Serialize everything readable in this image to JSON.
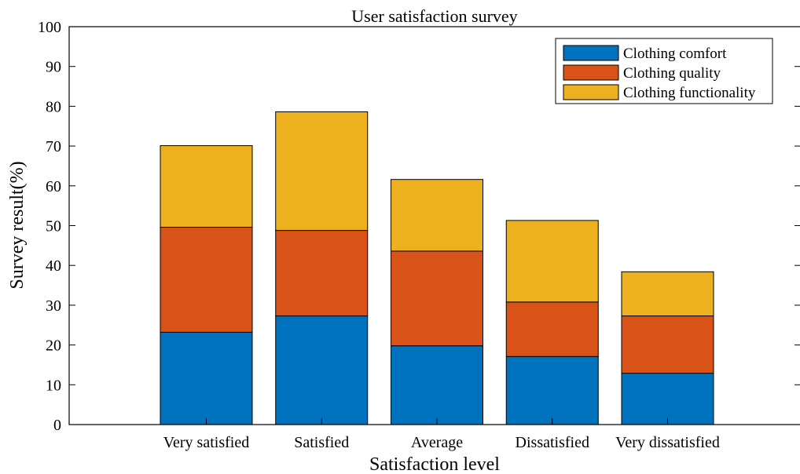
{
  "chart_data": {
    "type": "bar",
    "stacked": true,
    "title": "User satisfaction survey",
    "xlabel": "Satisfaction level",
    "ylabel": "Survey result(%)",
    "categories": [
      "Very satisfied",
      "Satisfied",
      "Average",
      "Dissatisfied",
      "Very dissatisfied"
    ],
    "series": [
      {
        "name": "Clothing comfort",
        "color": "#0072BD",
        "values": [
          23.2,
          27.3,
          19.8,
          17.1,
          12.9
        ]
      },
      {
        "name": "Clothing quality",
        "color": "#D95319",
        "values": [
          26.4,
          21.5,
          23.8,
          13.7,
          14.4
        ]
      },
      {
        "name": "Clothing functionality",
        "color": "#EDB120",
        "values": [
          20.5,
          29.8,
          18.0,
          20.5,
          11.1
        ]
      }
    ],
    "ylim": [
      0,
      100
    ],
    "yticks": [
      0,
      10,
      20,
      30,
      40,
      50,
      60,
      70,
      80,
      90,
      100
    ],
    "grid": false,
    "legend_position": "top-right",
    "box": true
  }
}
